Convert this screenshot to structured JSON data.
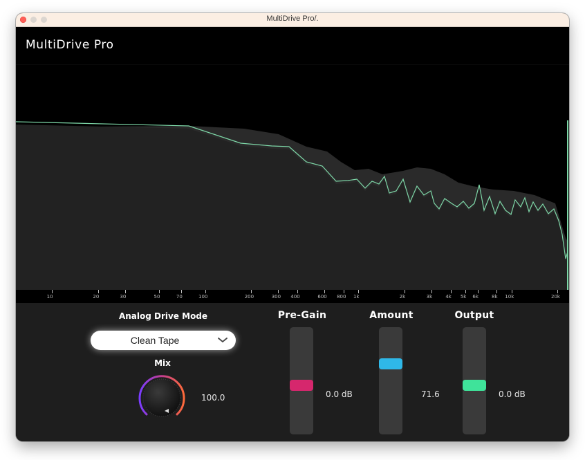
{
  "window": {
    "title": "MultiDrive Pro/."
  },
  "header": {
    "app_title": "MultiDrive Pro"
  },
  "spectrum": {
    "frequency_labels": [
      "10",
      "20",
      "30",
      "50",
      "70",
      "100",
      "200",
      "300",
      "400",
      "600",
      "800",
      "1k",
      "2k",
      "3k",
      "4k",
      "5k",
      "6k",
      "8k",
      "10k",
      "20k"
    ],
    "curve_color": "#7ed8a8",
    "fill_color": "#2a2a2a"
  },
  "drive_mode": {
    "label": "Analog Drive Mode",
    "selected": "Clean Tape"
  },
  "mix": {
    "label": "Mix",
    "value_text": "100.0",
    "value": 100.0
  },
  "faders": [
    {
      "id": "pre-gain",
      "label": "Pre-Gain",
      "value_text": "0.0 dB",
      "level": 0.5,
      "color": "#d6276d"
    },
    {
      "id": "amount",
      "label": "Amount",
      "value_text": "71.6",
      "level": 0.716,
      "color": "#2fb8e8"
    },
    {
      "id": "output",
      "label": "Output",
      "value_text": "0.0 dB",
      "level": 0.5,
      "color": "#3fe39a"
    }
  ]
}
